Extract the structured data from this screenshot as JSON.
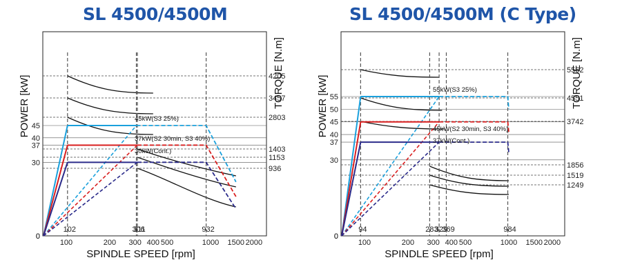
{
  "chart_data": [
    {
      "type": "line",
      "title": "SL 4500/4500M",
      "xlabel": "SPINDLE SPEED [rpm]",
      "ylabel_left": "POWER [kW]",
      "ylabel_right": "TORQUE [N.m]",
      "x_scale": "log",
      "xlim": [
        50,
        2000
      ],
      "ylim_power": [
        0,
        85
      ],
      "x_ticks": [
        100,
        200,
        300,
        400,
        500,
        1000,
        1500,
        2000
      ],
      "x_tick_labels": [
        "100",
        "200",
        "300",
        "400",
        "500",
        "1000",
        "1500",
        "2000"
      ],
      "power_ticks": [
        0,
        30,
        37,
        40,
        45
      ],
      "torque_ticks": [
        "4205",
        "3457",
        "2803",
        "1403",
        "1153",
        "936"
      ],
      "speed_markers": [
        102,
        306,
        311,
        932
      ],
      "series": [
        {
          "name": "45kW(S3 25%)",
          "color": "#1aa0dc",
          "x": [
            55,
            102,
            306,
            932,
            1500
          ],
          "y": [
            0,
            45,
            45,
            45,
            22
          ]
        },
        {
          "name": "37kW(S2 30min, S3 40%)",
          "color": "#d91e1e",
          "x": [
            55,
            102,
            311,
            932,
            1500
          ],
          "y": [
            0,
            37,
            37,
            37,
            16
          ]
        },
        {
          "name": "30kW(Cont.)",
          "color": "#2a2a8a",
          "x": [
            55,
            102,
            311,
            932,
            1500
          ],
          "y": [
            0,
            30,
            30,
            30,
            11
          ]
        }
      ]
    },
    {
      "type": "line",
      "title": "SL 4500/4500M (C Type)",
      "xlabel": "SPINDLE SPEED [rpm]",
      "ylabel_left": "POWER [kW]",
      "ylabel_right": "TORQUE [N.m]",
      "x_scale": "log",
      "xlim": [
        50,
        2000
      ],
      "ylim_power": [
        0,
        85
      ],
      "x_ticks": [
        100,
        200,
        300,
        400,
        500,
        1000,
        1500,
        2000
      ],
      "x_tick_labels": [
        "100",
        "200",
        "300",
        "400",
        "500",
        "1000",
        "1500",
        "2000"
      ],
      "power_ticks": [
        0,
        30,
        37,
        40,
        45,
        50,
        55
      ],
      "torque_ticks": [
        "5562",
        "4551",
        "3742",
        "1856",
        "1519",
        "1249"
      ],
      "speed_markers": [
        94,
        283,
        329,
        369,
        984
      ],
      "series": [
        {
          "name": "55kW(S3 25%)",
          "color": "#1aa0dc",
          "x": [
            55,
            94,
            329,
            984,
            1000
          ],
          "y": [
            0,
            55,
            55,
            55,
            50
          ]
        },
        {
          "name": "45kW(S2 30min, S3 40%)",
          "color": "#d91e1e",
          "x": [
            55,
            94,
            329,
            984,
            1000
          ],
          "y": [
            0,
            45,
            45,
            45,
            41
          ]
        },
        {
          "name": "37kW(Cont.)",
          "color": "#2a2a8a",
          "x": [
            55,
            94,
            329,
            984,
            1000
          ],
          "y": [
            0,
            37,
            37,
            37,
            33
          ]
        }
      ]
    }
  ]
}
